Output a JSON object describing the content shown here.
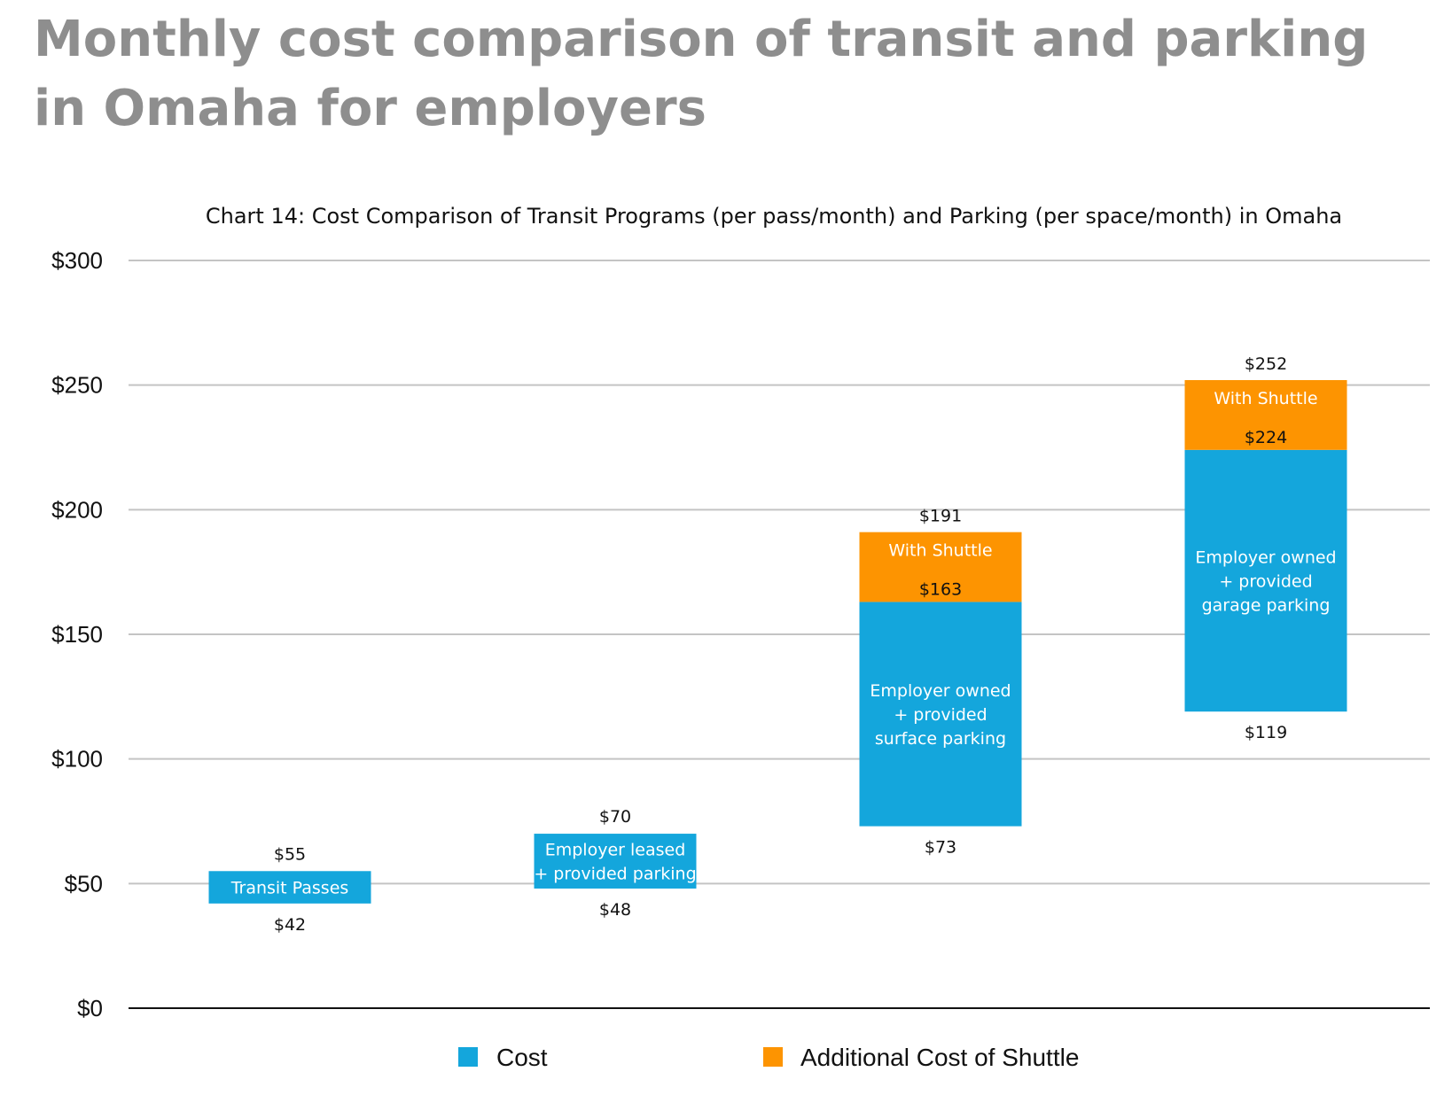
{
  "page": {
    "title": "Monthly cost comparison of transit and parking in Omaha for employers"
  },
  "chart_data": {
    "type": "bar",
    "subtype": "floating-stacked",
    "title": "Chart 14: Cost Comparison of Transit Programs (per pass/month) and Parking (per space/month) in Omaha",
    "xlabel": "",
    "ylabel": "",
    "ylim": [
      0,
      300
    ],
    "y_ticks": [
      0,
      50,
      100,
      150,
      200,
      250,
      300
    ],
    "y_tick_labels": [
      "$0",
      "$50",
      "$100",
      "$150",
      "$200",
      "$250",
      "$300"
    ],
    "grid": true,
    "legend_position": "bottom",
    "colors": {
      "cost": "#14a6dc",
      "shuttle": "#fd9401"
    },
    "series": [
      {
        "name": "Cost",
        "color": "#14a6dc"
      },
      {
        "name": "Additional Cost of Shuttle",
        "color": "#fd9401"
      }
    ],
    "bars": [
      {
        "label": [
          "Transit Passes"
        ],
        "low": 42,
        "high": 55,
        "low_label": "$42",
        "high_label": "$55",
        "shuttle_top": null,
        "shuttle_label": null,
        "shuttle_top_label": null
      },
      {
        "label": [
          "Employer leased",
          "+ provided parking"
        ],
        "low": 48,
        "high": 70,
        "low_label": "$48",
        "high_label": "$70",
        "shuttle_top": null,
        "shuttle_label": null,
        "shuttle_top_label": null
      },
      {
        "label": [
          "Employer owned",
          "+ provided",
          "surface parking"
        ],
        "low": 73,
        "high": 163,
        "low_label": "$73",
        "high_label": "$163",
        "shuttle_top": 191,
        "shuttle_label": "With Shuttle",
        "shuttle_top_label": "$191"
      },
      {
        "label": [
          "Employer owned",
          "+ provided",
          "garage parking"
        ],
        "low": 119,
        "high": 224,
        "low_label": "$119",
        "high_label": "$224",
        "shuttle_top": 252,
        "shuttle_label": "With Shuttle",
        "shuttle_top_label": "$252"
      }
    ]
  }
}
